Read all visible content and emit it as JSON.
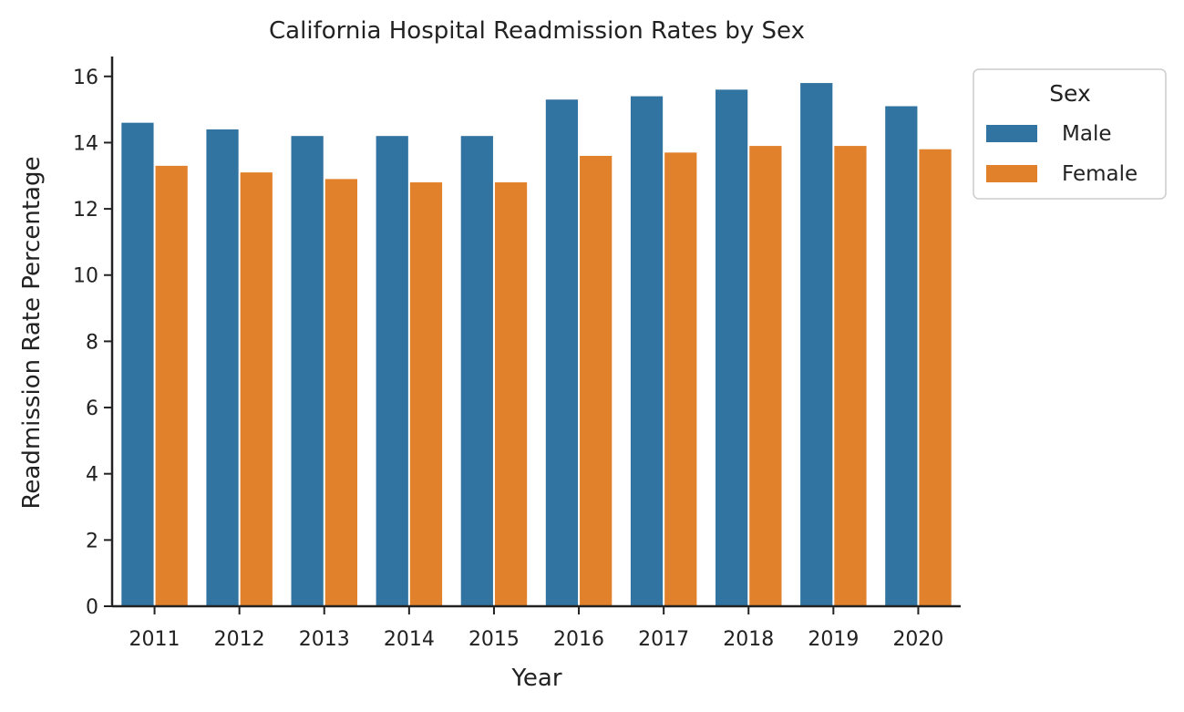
{
  "chart_data": {
    "type": "bar",
    "title": "California Hospital Readmission Rates by Sex",
    "xlabel": "Year",
    "ylabel": "Readmission Rate Percentage",
    "categories": [
      "2011",
      "2012",
      "2013",
      "2014",
      "2015",
      "2016",
      "2017",
      "2018",
      "2019",
      "2020"
    ],
    "series": [
      {
        "name": "Male",
        "color": "#3274a1",
        "values": [
          14.6,
          14.4,
          14.2,
          14.2,
          14.2,
          15.3,
          15.4,
          15.6,
          15.8,
          15.1
        ]
      },
      {
        "name": "Female",
        "color": "#e1812c",
        "values": [
          13.3,
          13.1,
          12.9,
          12.8,
          12.8,
          13.6,
          13.7,
          13.9,
          13.9,
          13.8
        ]
      }
    ],
    "ylim": [
      0,
      16.6
    ],
    "yticks": [
      0,
      2,
      4,
      6,
      8,
      10,
      12,
      14,
      16
    ],
    "grid": false,
    "legend": {
      "title": "Sex",
      "placement": "outside-top-right"
    }
  }
}
